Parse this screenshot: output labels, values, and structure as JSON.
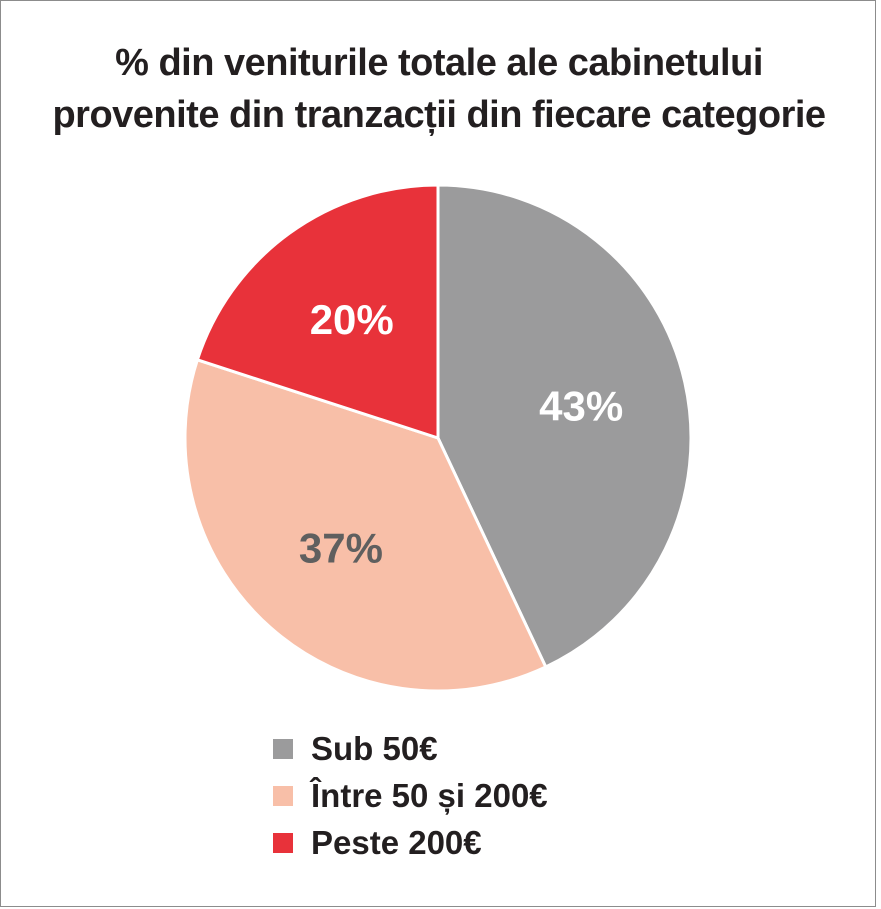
{
  "chart_data": {
    "type": "pie",
    "title": "% din veniturile totale ale cabinetului provenite din tranzacții din fiecare categorie",
    "title_lines": [
      "% din veniturile totale ale cabinetului",
      "provenite din tranzacții din fiecare categorie"
    ],
    "categories": [
      "Sub 50€",
      "Între 50 și 200€",
      "Peste 200€"
    ],
    "values": [
      43,
      37,
      20
    ],
    "data_labels": [
      "43%",
      "37%",
      "20%"
    ],
    "colors": [
      "#9b9b9c",
      "#f8bfa8",
      "#e8323a"
    ],
    "label_colors": [
      "#ffffff",
      "#5f5f5f",
      "#ffffff"
    ],
    "start_angle": "12 o'clock",
    "direction": "clockwise",
    "legend_position": "bottom-center"
  }
}
